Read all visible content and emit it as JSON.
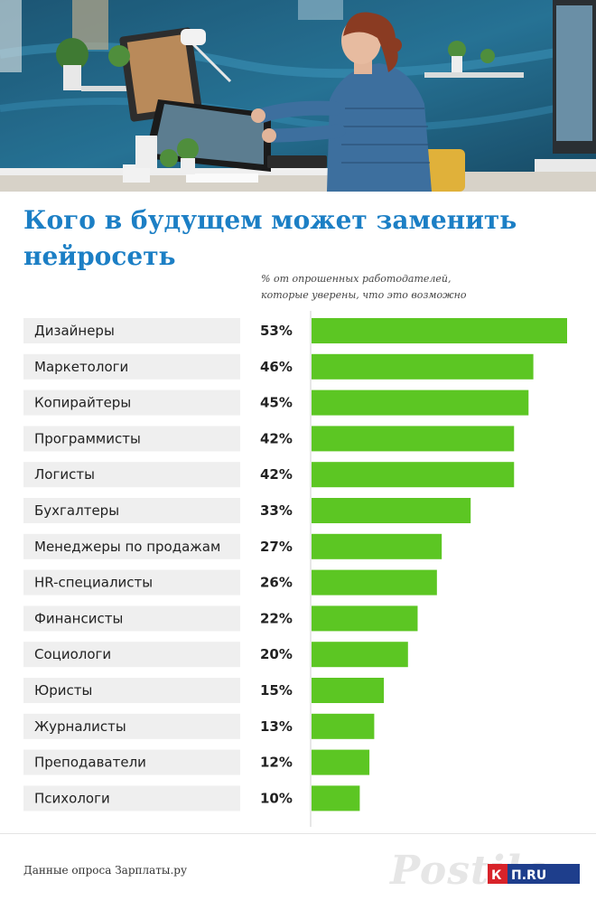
{
  "header": {
    "title": "Кого в будущем может заменить нейросеть",
    "subtitle": "% от опрошенных работодателей, которые уверены, что это возможно"
  },
  "chart_data": {
    "type": "bar",
    "orientation": "horizontal",
    "categories": [
      "Дизайнеры",
      "Маркетологи",
      "Копирайтеры",
      "Программисты",
      "Логисты",
      "Бухгалтеры",
      "Менеджеры по продажам",
      "HR-специалисты",
      "Финансисты",
      "Социологи",
      "Юристы",
      "Журналисты",
      "Преподаватели",
      "Психологи"
    ],
    "values": [
      53,
      46,
      45,
      42,
      42,
      33,
      27,
      26,
      22,
      20,
      15,
      13,
      12,
      10
    ],
    "value_labels": [
      "53%",
      "46%",
      "45%",
      "42%",
      "42%",
      "33%",
      "27%",
      "26%",
      "22%",
      "20%",
      "15%",
      "13%",
      "12%",
      "10%"
    ],
    "xlim": [
      0,
      53
    ],
    "bar_color": "#5cc623",
    "label_bg": "#efefef",
    "title": "Кого в будущем может заменить нейросеть",
    "grid": false
  },
  "footer": {
    "source": "Данные опроса Зарплаты.ру",
    "logo_watermark": "Postila",
    "logo_badge": "КП.RU"
  },
  "colors": {
    "title": "#1c7fc5",
    "bar": "#5cc623",
    "logo_red": "#d8232a"
  }
}
